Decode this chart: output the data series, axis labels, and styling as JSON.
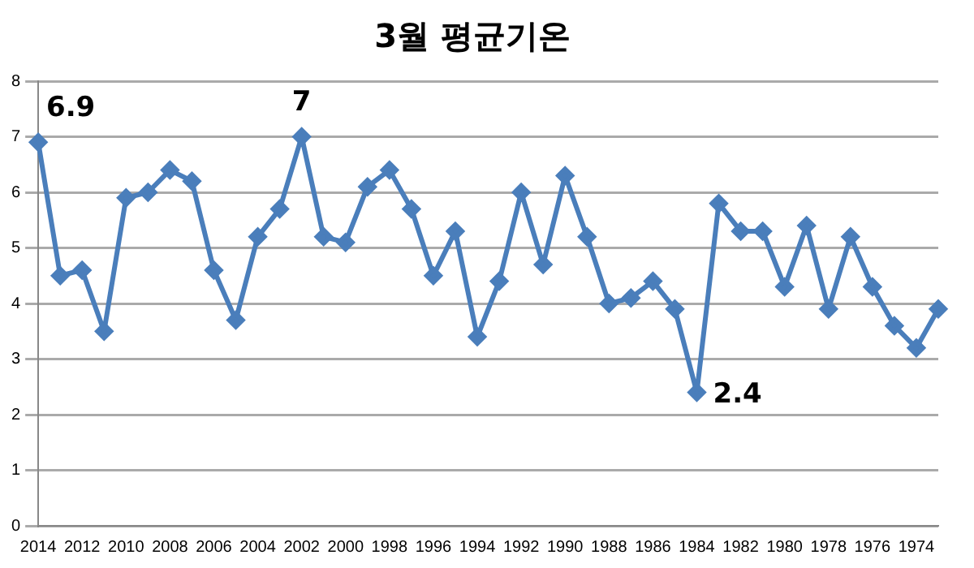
{
  "chart_data": {
    "type": "line",
    "title": "3월 평균기온",
    "categories": [
      "2014",
      null,
      "2012",
      null,
      "2010",
      null,
      "2008",
      null,
      "2006",
      null,
      "2004",
      null,
      "2002",
      null,
      "2000",
      null,
      "1998",
      null,
      "1996",
      null,
      "1994",
      null,
      "1992",
      null,
      "1990",
      null,
      "1988",
      null,
      "1986",
      null,
      "1984",
      null,
      "1982",
      null,
      "1980",
      null,
      "1978",
      null,
      "1976",
      null,
      "1974",
      null
    ],
    "series": [
      {
        "color": "#4a7ebb",
        "values": [
          6.9,
          4.5,
          4.6,
          3.5,
          5.9,
          6.0,
          6.4,
          6.2,
          4.6,
          3.7,
          5.2,
          5.7,
          7.0,
          5.2,
          5.1,
          6.1,
          6.4,
          5.7,
          4.5,
          5.3,
          3.4,
          4.4,
          6.0,
          4.7,
          6.3,
          5.2,
          4.0,
          4.1,
          4.4,
          3.9,
          2.4,
          5.8,
          5.3,
          5.3,
          4.3,
          5.4,
          3.9,
          5.2,
          4.3,
          3.6,
          3.2,
          3.9
        ],
        "value_labels": [
          "6.9",
          null,
          null,
          null,
          null,
          null,
          null,
          null,
          null,
          null,
          null,
          null,
          "7",
          null,
          null,
          null,
          null,
          null,
          null,
          null,
          null,
          null,
          null,
          null,
          null,
          null,
          null,
          null,
          null,
          null,
          "2.4",
          null,
          null,
          null,
          null,
          null,
          null,
          null,
          null,
          null,
          null,
          null
        ]
      }
    ],
    "ylim": [
      0,
      8
    ],
    "yticks": [
      0,
      1,
      2,
      3,
      4,
      5,
      6,
      7,
      8
    ],
    "grid": "y",
    "legend": false,
    "marker": "diamond",
    "line_style": "solid"
  }
}
